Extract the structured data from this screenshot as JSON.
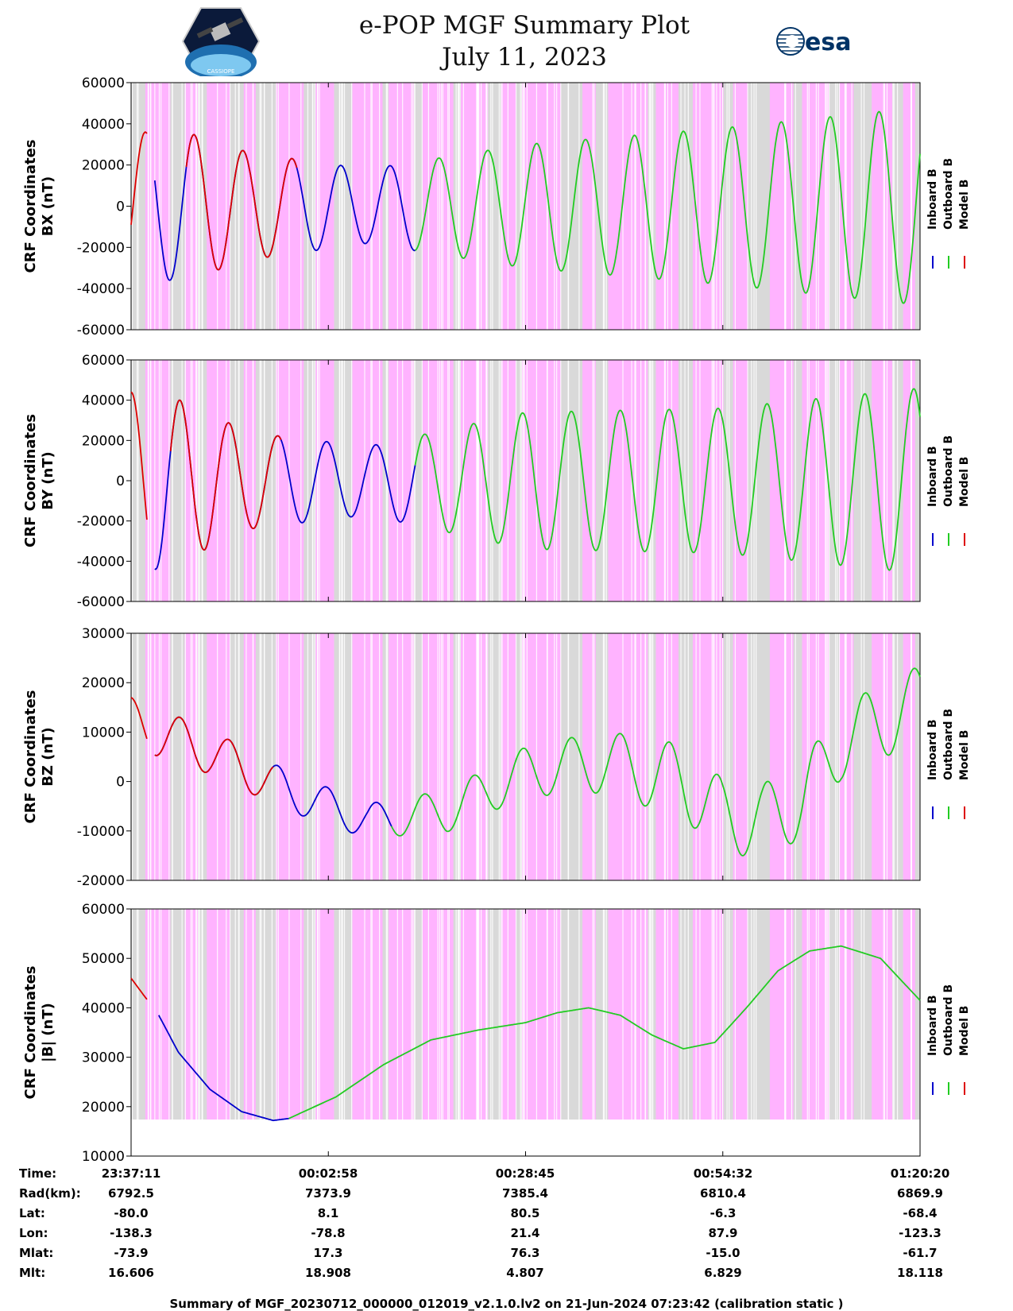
{
  "header": {
    "title_line1": "e-POP MGF Summary Plot",
    "title_line2": "July 11, 2023",
    "logo_left_text": "CASSIOPE",
    "logo_right_text": "esa"
  },
  "legend": {
    "inboard": "Inboard B",
    "outboard": "Outboard B",
    "model": "Model B",
    "colors": {
      "inboard": "#0000cc",
      "outboard": "#22cc22",
      "model": "#dd0000"
    }
  },
  "colors": {
    "pink": "#ffb3ff",
    "gray": "#d9d9d9",
    "axis": "#000000"
  },
  "chart_data": [
    {
      "type": "line",
      "ylabel_line1": "CRF Coordinates",
      "ylabel_line2": "BX (nT)",
      "ylim": [
        -60000,
        60000
      ],
      "yticks": [
        "60000",
        "40000",
        "20000",
        "0",
        "-20000",
        "-40000",
        "-60000"
      ],
      "yticks_values": [
        60000,
        40000,
        20000,
        0,
        -20000,
        -40000,
        -60000
      ],
      "series_shape": {
        "kind": "oscillation",
        "start_t": 0.07,
        "period": 0.062,
        "phase": 0.018,
        "amplitudes": [
          [
            0.07,
            36000
          ],
          [
            0.15,
            26000
          ],
          [
            0.3,
            18000
          ],
          [
            0.5,
            30000
          ],
          [
            0.75,
            38000
          ],
          [
            1.0,
            48000
          ]
        ]
      },
      "model_segments": [
        [
          0.0,
          0.02
        ],
        [
          0.07,
          0.21
        ]
      ],
      "inboard_segments": [
        [
          0.03,
          0.36
        ]
      ],
      "outboard_segments": [
        [
          0.36,
          1.0
        ]
      ]
    },
    {
      "type": "line",
      "ylabel_line1": "CRF Coordinates",
      "ylabel_line2": "BY (nT)",
      "ylim": [
        -60000,
        60000
      ],
      "yticks": [
        "60000",
        "40000",
        "20000",
        "0",
        "-20000",
        "-40000",
        "-60000"
      ],
      "yticks_values": [
        60000,
        40000,
        20000,
        0,
        -20000,
        -40000,
        -60000
      ],
      "series_shape": {
        "kind": "oscillation",
        "start_t": 0.045,
        "period": 0.062,
        "phase": 0.0,
        "amplitudes": [
          [
            0.04,
            44000
          ],
          [
            0.15,
            24000
          ],
          [
            0.3,
            17000
          ],
          [
            0.5,
            34000
          ],
          [
            0.75,
            36000
          ],
          [
            1.0,
            46000
          ]
        ]
      },
      "model_segments": [
        [
          0.0,
          0.02
        ],
        [
          0.05,
          0.19
        ]
      ],
      "inboard_segments": [
        [
          0.03,
          0.36
        ]
      ],
      "outboard_segments": [
        [
          0.36,
          1.0
        ]
      ]
    },
    {
      "type": "line",
      "ylabel_line1": "CRF Coordinates",
      "ylabel_line2": "BZ (nT)",
      "ylim": [
        -20000,
        30000
      ],
      "yticks": [
        "30000",
        "20000",
        "10000",
        "0",
        "-10000",
        "-20000"
      ],
      "yticks_values": [
        30000,
        20000,
        10000,
        0,
        -10000,
        -20000
      ],
      "series_shape": {
        "kind": "trend-oscillation",
        "trend": [
          [
            0.0,
            12000
          ],
          [
            0.1,
            6000
          ],
          [
            0.2,
            -2000
          ],
          [
            0.3,
            -8000
          ],
          [
            0.4,
            -6000
          ],
          [
            0.5,
            2000
          ],
          [
            0.6,
            4000
          ],
          [
            0.7,
            0
          ],
          [
            0.75,
            -7000
          ],
          [
            0.8,
            -8000
          ],
          [
            0.85,
            -4000
          ],
          [
            0.9,
            8000
          ],
          [
            1.0,
            16000
          ]
        ],
        "amp": [
          [
            0.0,
            5000
          ],
          [
            0.3,
            3500
          ],
          [
            0.5,
            5000
          ],
          [
            0.7,
            7500
          ],
          [
            1.0,
            7500
          ]
        ],
        "period": 0.062,
        "phase": 0.0
      },
      "model_segments": [
        [
          0.0,
          0.02
        ],
        [
          0.03,
          0.18
        ]
      ],
      "inboard_segments": [
        [
          0.03,
          0.33
        ]
      ],
      "outboard_segments": [
        [
          0.33,
          1.0
        ]
      ]
    },
    {
      "type": "line",
      "ylabel_line1": "CRF Coordinates",
      "ylabel_line2": "|B| (nT)",
      "ylim": [
        10000,
        60000
      ],
      "yticks": [
        "60000",
        "50000",
        "40000",
        "30000",
        "20000",
        "10000"
      ],
      "yticks_values": [
        60000,
        50000,
        40000,
        30000,
        20000,
        10000
      ],
      "series": [
        {
          "name": "Model B",
          "x": [
            0.0,
            0.02
          ],
          "values": [
            46000,
            41700
          ]
        },
        {
          "name": "Inboard B",
          "x": [
            0.035,
            0.06,
            0.1,
            0.14,
            0.18,
            0.2
          ],
          "values": [
            38500,
            31000,
            23500,
            19000,
            17200,
            17600
          ]
        },
        {
          "name": "Outboard B",
          "x": [
            0.2,
            0.26,
            0.32,
            0.38,
            0.44,
            0.5,
            0.54,
            0.58,
            0.62,
            0.66,
            0.7,
            0.74,
            0.78,
            0.82,
            0.86,
            0.9,
            0.95,
            1.0
          ],
          "values": [
            17600,
            22000,
            28500,
            33500,
            35500,
            37000,
            39000,
            40000,
            38500,
            34500,
            31700,
            33000,
            40000,
            47500,
            51500,
            52500,
            50000,
            41500
          ]
        }
      ]
    }
  ],
  "time_table": {
    "labels": [
      "Time:",
      "Rad(km):",
      "Lat:",
      "Lon:",
      "Mlat:",
      "Mlt:"
    ],
    "columns": [
      [
        "23:37:11",
        "6792.5",
        "-80.0",
        "-138.3",
        "-73.9",
        "16.606"
      ],
      [
        "00:02:58",
        "7373.9",
        "8.1",
        "-78.8",
        "17.3",
        "18.908"
      ],
      [
        "00:28:45",
        "7385.4",
        "80.5",
        "21.4",
        "76.3",
        "4.807"
      ],
      [
        "00:54:32",
        "6810.4",
        "-6.3",
        "87.9",
        "-15.0",
        "6.829"
      ],
      [
        "01:20:20",
        "6869.9",
        "-68.4",
        "-123.3",
        "-61.7",
        "18.118"
      ]
    ]
  },
  "footer": "Summary of MGF_20230712_000000_012019_v2.1.0.lv2 on 21-Jun-2024 07:23:42 (calibration static )"
}
